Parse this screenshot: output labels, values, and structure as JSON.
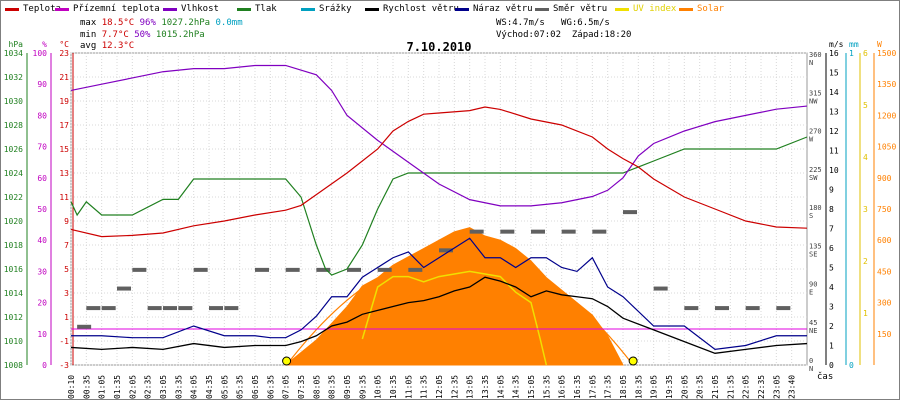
{
  "legend": [
    {
      "label": "Teplota",
      "color": "#cc0000"
    },
    {
      "label": "Přízemní teplota",
      "color": "#c000c0"
    },
    {
      "label": "Vlhkost",
      "color": "#8000c0"
    },
    {
      "label": "Tlak",
      "color": "#208020"
    },
    {
      "label": "Srážky",
      "color": "#00a0c0"
    },
    {
      "label": "Rychlost větru",
      "color": "#000000"
    },
    {
      "label": "Náraz větru",
      "color": "#00008b"
    },
    {
      "label": "Směr větru",
      "color": "#606060"
    },
    {
      "label": "UV index",
      "color": "#f0e000"
    },
    {
      "label": "Solar",
      "color": "#ff8000"
    }
  ],
  "stats": {
    "max_label": "max",
    "max_temp": "18.5°C",
    "max_hum": "96%",
    "max_press": "1027.2hPa",
    "rain": "0.0mm",
    "min_label": "min",
    "min_temp": "7.7°C",
    "min_hum": "50%",
    "min_press": "1015.2hPa",
    "avg_label": "avg",
    "avg_temp": "12.3°C",
    "ws": "WS:4.7m/s",
    "wg": "WG:6.5m/s",
    "sunrise": "Východ:07:02",
    "sunset": "Západ:18:20"
  },
  "chart_data": {
    "type": "line",
    "title": "7.10.2010",
    "xlabel": "čas",
    "x_ticks": [
      "00:10",
      "00:35",
      "01:05",
      "01:35",
      "02:05",
      "02:35",
      "03:05",
      "03:35",
      "04:05",
      "04:35",
      "05:05",
      "05:35",
      "06:05",
      "06:35",
      "07:05",
      "07:35",
      "08:05",
      "08:35",
      "09:05",
      "09:35",
      "10:05",
      "10:35",
      "11:05",
      "11:35",
      "12:05",
      "12:35",
      "13:05",
      "13:35",
      "14:05",
      "14:35",
      "15:05",
      "15:35",
      "16:05",
      "16:35",
      "17:05",
      "17:35",
      "18:05",
      "18:35",
      "19:05",
      "19:35",
      "20:05",
      "20:35",
      "21:05",
      "21:35",
      "22:05",
      "22:35",
      "23:05",
      "23:40"
    ],
    "axes": {
      "hpa": {
        "label": "hPa",
        "range": [
          1008,
          1034
        ],
        "ticks": [
          1008,
          1010,
          1012,
          1014,
          1016,
          1018,
          1020,
          1022,
          1024,
          1026,
          1028,
          1030,
          1032,
          1034
        ]
      },
      "pct": {
        "label": "%",
        "range": [
          0,
          100
        ],
        "ticks": [
          0,
          10,
          20,
          30,
          40,
          50,
          60,
          70,
          80,
          90,
          100
        ]
      },
      "degc": {
        "label": "°C",
        "range": [
          -3,
          23
        ],
        "ticks": [
          -3,
          -1,
          1,
          3,
          5,
          7,
          9,
          11,
          13,
          15,
          17,
          19,
          21,
          23
        ]
      },
      "ms": {
        "label": "m/s",
        "range": [
          0,
          16
        ],
        "ticks": [
          0,
          1,
          2,
          3,
          4,
          5,
          6,
          7,
          8,
          9,
          10,
          11,
          12,
          13,
          14,
          15,
          16
        ]
      },
      "mm": {
        "label": "mm",
        "range": [
          0,
          1
        ],
        "ticks": [
          0,
          1
        ]
      },
      "uv": {
        "label": "",
        "range": [
          0,
          6
        ],
        "ticks": [
          0,
          1,
          2,
          3,
          4,
          5,
          6
        ]
      },
      "w": {
        "label": "W",
        "range": [
          0,
          1500
        ],
        "ticks": [
          0,
          150,
          300,
          450,
          600,
          750,
          900,
          1050,
          1200,
          1350,
          1500
        ]
      },
      "dir": {
        "labels": [
          "N",
          "NE",
          "E",
          "SE",
          "S",
          "SW",
          "W",
          "NW",
          "N"
        ],
        "degrees": [
          0,
          45,
          90,
          135,
          180,
          225,
          270,
          315,
          360
        ]
      }
    },
    "series": [
      {
        "name": "Teplota",
        "axis": "degc",
        "hours": [
          0,
          1,
          2,
          3,
          4,
          5,
          6,
          7,
          7.5,
          8,
          9,
          10,
          10.5,
          11,
          11.5,
          12,
          13,
          13.5,
          14,
          15,
          16,
          17,
          17.5,
          18,
          18.5,
          19,
          20,
          21,
          22,
          23,
          24
        ],
        "values": [
          8.3,
          7.7,
          7.8,
          8.0,
          8.6,
          9.0,
          9.5,
          9.9,
          10.3,
          11.2,
          13.0,
          15.0,
          16.5,
          17.3,
          17.9,
          18.0,
          18.2,
          18.5,
          18.3,
          17.5,
          17.0,
          16.0,
          15.0,
          14.2,
          13.5,
          12.5,
          11.0,
          10.0,
          9.0,
          8.5,
          8.4
        ]
      },
      {
        "name": "Vlhkost",
        "axis": "pct",
        "hours": [
          0,
          1,
          2,
          3,
          4,
          5,
          6,
          7,
          8,
          8.5,
          9,
          10,
          11,
          12,
          13,
          14,
          15,
          16,
          17,
          17.5,
          18,
          18.5,
          19,
          20,
          21,
          22,
          23,
          24
        ],
        "values": [
          88,
          90,
          92,
          94,
          95,
          95,
          96,
          96,
          93,
          88,
          80,
          72,
          65,
          58,
          53,
          51,
          51,
          52,
          54,
          56,
          60,
          67,
          71,
          75,
          78,
          80,
          82,
          83
        ]
      },
      {
        "name": "Tlak",
        "axis": "hpa",
        "hours": [
          0,
          0.2,
          0.5,
          1,
          2,
          3,
          3.5,
          4,
          4.5,
          5,
          6,
          7,
          7.5,
          8,
          8.3,
          8.5,
          9,
          9.5,
          10,
          10.5,
          11,
          12,
          13,
          14,
          15,
          16,
          17,
          18,
          19,
          20,
          21,
          22,
          23,
          24
        ],
        "values": [
          1021.6,
          1020.5,
          1021.6,
          1020.5,
          1020.5,
          1021.8,
          1021.8,
          1023.5,
          1023.5,
          1023.5,
          1023.5,
          1023.5,
          1022,
          1018,
          1016,
          1015.5,
          1016,
          1018,
          1021,
          1023.5,
          1024,
          1024,
          1024,
          1024,
          1024,
          1024,
          1024,
          1024,
          1025,
          1026,
          1026,
          1026,
          1026,
          1027
        ]
      },
      {
        "name": "Rychlost větru",
        "axis": "ms",
        "hours": [
          0,
          1,
          2,
          3,
          4,
          5,
          6,
          6.5,
          7,
          7.5,
          8,
          8.5,
          9,
          9.5,
          10,
          10.5,
          11,
          11.5,
          12,
          12.5,
          13,
          13.5,
          14,
          14.5,
          15,
          15.5,
          16,
          16.5,
          17,
          17.5,
          18,
          19,
          20,
          21,
          22,
          23,
          24
        ],
        "values": [
          0.9,
          0.8,
          0.9,
          0.8,
          1.1,
          0.9,
          1.0,
          1.0,
          1.0,
          1.2,
          1.5,
          2.0,
          2.2,
          2.6,
          2.8,
          3.0,
          3.2,
          3.3,
          3.5,
          3.8,
          4.0,
          4.5,
          4.3,
          4.0,
          3.5,
          3.8,
          3.6,
          3.5,
          3.4,
          3.0,
          2.4,
          1.8,
          1.2,
          0.6,
          0.8,
          1.0,
          1.1
        ]
      },
      {
        "name": "Náraz větru",
        "axis": "ms",
        "hours": [
          0,
          1,
          2,
          3,
          4,
          5,
          6,
          6.5,
          7,
          7.5,
          8,
          8.5,
          9,
          9.5,
          10,
          10.5,
          11,
          11.5,
          12,
          12.5,
          13,
          13.5,
          14,
          14.5,
          15,
          15.5,
          16,
          16.5,
          17,
          17.5,
          18,
          19,
          20,
          21,
          22,
          23,
          24
        ],
        "values": [
          1.5,
          1.5,
          1.4,
          1.4,
          2.0,
          1.5,
          1.5,
          1.4,
          1.4,
          1.8,
          2.5,
          3.5,
          3.5,
          4.5,
          5.0,
          5.5,
          5.8,
          5.0,
          5.5,
          6.0,
          6.5,
          5.5,
          5.5,
          5.0,
          5.5,
          5.5,
          5.0,
          4.8,
          5.5,
          4.0,
          3.5,
          2.0,
          2.0,
          0.8,
          1.0,
          1.5,
          1.5
        ]
      },
      {
        "name": "Solar",
        "axis": "w",
        "hours": [
          7,
          8,
          9,
          9.5,
          10,
          10.5,
          11,
          11.5,
          12,
          12.5,
          13,
          13.5,
          14,
          14.5,
          15,
          15.5,
          16,
          16.5,
          17,
          17.5,
          18
        ],
        "values": [
          0,
          120,
          280,
          380,
          420,
          480,
          520,
          560,
          600,
          640,
          660,
          620,
          600,
          560,
          500,
          420,
          360,
          300,
          240,
          140,
          0
        ]
      },
      {
        "name": "UV index",
        "axis": "uv",
        "hours": [
          9.5,
          10,
          10.5,
          11,
          11.5,
          12,
          13,
          14,
          14.5,
          15,
          15.3,
          15.5
        ],
        "values": [
          0.5,
          1.5,
          1.7,
          1.7,
          1.6,
          1.7,
          1.8,
          1.7,
          1.4,
          1.2,
          0.5,
          0
        ]
      },
      {
        "name": "Směr větru",
        "axis": "dir",
        "hours": [
          0.2,
          0.5,
          1,
          1.5,
          2,
          2.5,
          3,
          3.5,
          4,
          4.5,
          5,
          6,
          7,
          8,
          9,
          10,
          11,
          12,
          13,
          14,
          15,
          16,
          17,
          18,
          19,
          20,
          21,
          22,
          23
        ],
        "values": [
          45,
          67,
          67,
          90,
          112,
          67,
          67,
          67,
          112,
          67,
          67,
          112,
          112,
          112,
          112,
          112,
          112,
          135,
          157,
          157,
          157,
          157,
          157,
          180,
          90,
          67,
          67,
          67,
          67
        ]
      }
    ]
  }
}
